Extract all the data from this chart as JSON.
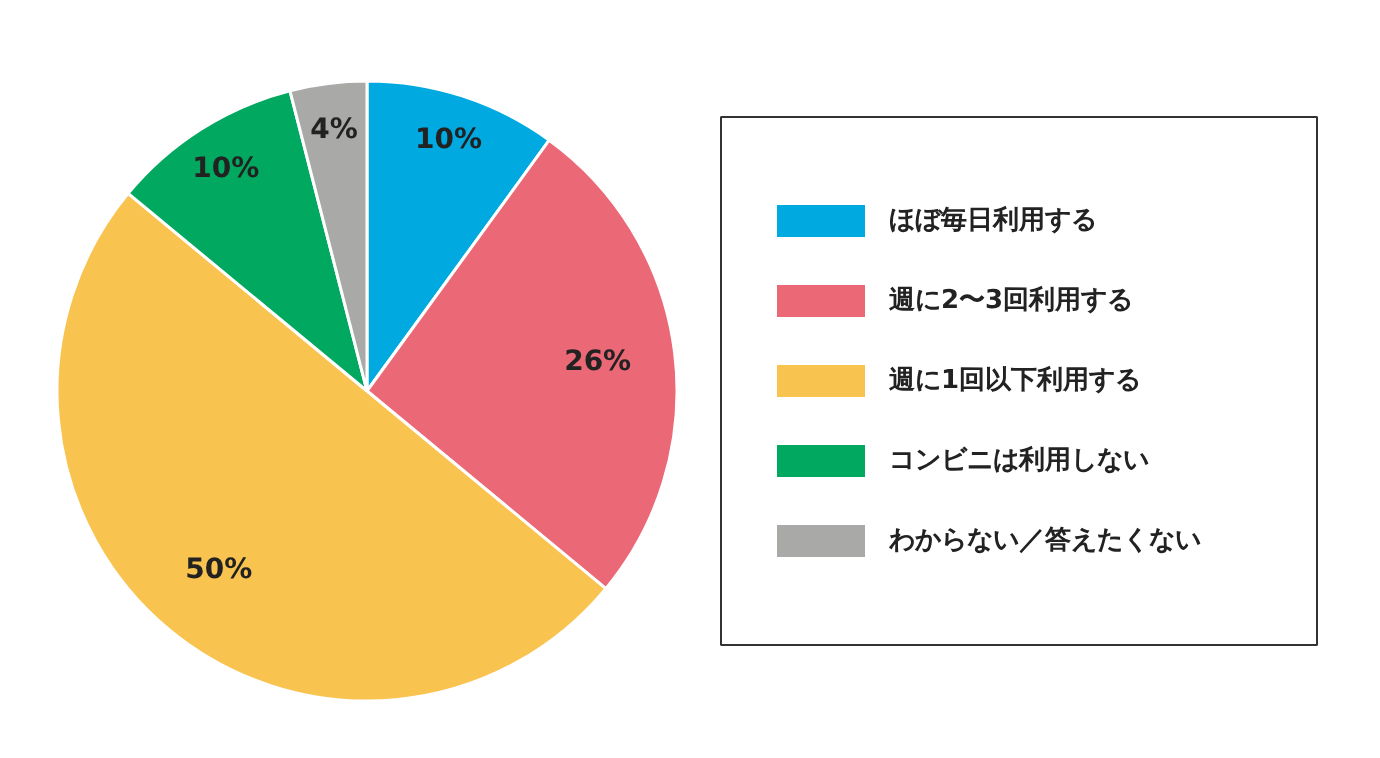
{
  "chart_data": {
    "type": "pie",
    "categories": [
      "ほぼ毎日利用する",
      "週に2〜3回利用する",
      "週に1回以下利用する",
      "コンビニは利用しない",
      "わからない／答えたくない"
    ],
    "values": [
      10,
      26,
      50,
      10,
      4
    ],
    "colors": [
      "#00a9e0",
      "#eb6877",
      "#f9c350",
      "#00a95f",
      "#a9a9a8"
    ],
    "value_labels": [
      "10%",
      "26%",
      "50%",
      "10%",
      "4%"
    ],
    "legend": "right"
  }
}
